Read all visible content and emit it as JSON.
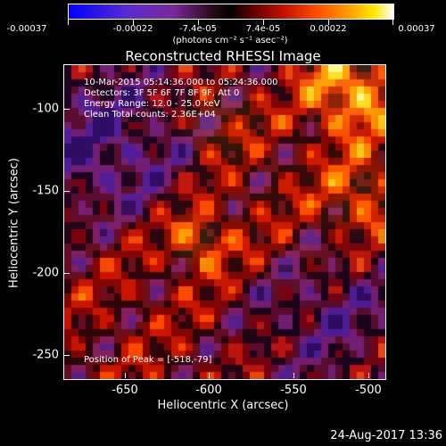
{
  "colorbar": {
    "tick_labels": [
      "-0.00037",
      "-0.00022",
      "-7.4e-05",
      "7.4e-05",
      "0.00022",
      "0.00037"
    ],
    "units": "(photons cm⁻² s⁻¹ asec⁻²)"
  },
  "title": "Reconstructed RHESSI Image",
  "info": {
    "time_range": "10-Mar-2015 05:14:36.000 to 05:24:36.000",
    "detectors": "Detectors: 3F 5F 6F 7F 8F 9F, Att 0",
    "energy_range": "Energy Range: 12.0 - 25.0 keV",
    "method": "Clean     Total counts: 2.36E+04",
    "peak": "Position of Peak = [-518,-79]"
  },
  "axes": {
    "x_label": "Heliocentric X (arcsec)",
    "y_label": "Heliocentric Y (arcsec)",
    "x_ticks": [
      "-650",
      "-600",
      "-550",
      "-500"
    ],
    "y_ticks": [
      "-100",
      "-150",
      "-200",
      "-250"
    ]
  },
  "timestamp": "24-Aug-2017 13:36"
}
